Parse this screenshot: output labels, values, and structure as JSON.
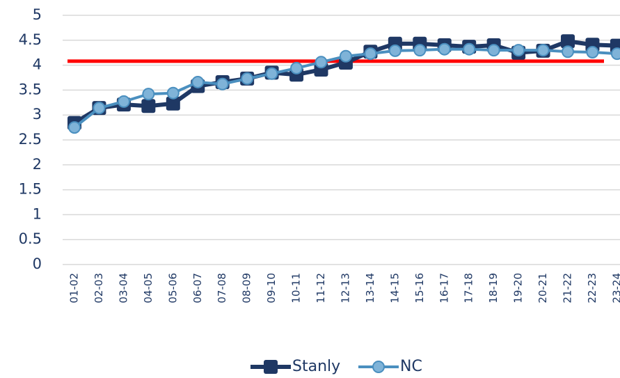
{
  "chart_data": {
    "type": "line",
    "categories": [
      "01-02",
      "02-03",
      "03-04",
      "04-05",
      "05-06",
      "06-07",
      "07-08",
      "08-09",
      "09-10",
      "10-11",
      "11-12",
      "12-13",
      "13-14",
      "14-15",
      "15-16",
      "16-17",
      "17-18",
      "18-19",
      "19-20",
      "20-21",
      "21-22",
      "22-23",
      "23-24"
    ],
    "series": [
      {
        "name": "Stanly",
        "color": "#1f3864",
        "marker": "square",
        "values": [
          2.84,
          3.14,
          3.21,
          3.18,
          3.23,
          3.58,
          3.66,
          3.73,
          3.85,
          3.81,
          3.91,
          4.05,
          4.27,
          4.43,
          4.43,
          4.4,
          4.37,
          4.4,
          4.25,
          4.29,
          4.48,
          4.41,
          4.39
        ]
      },
      {
        "name": "NC",
        "color": "#4a8fbf",
        "marker": "circle",
        "values": [
          2.75,
          3.14,
          3.27,
          3.42,
          3.44,
          3.66,
          3.62,
          3.73,
          3.83,
          3.94,
          4.06,
          4.18,
          4.23,
          4.29,
          4.3,
          4.32,
          4.32,
          4.3,
          4.3,
          4.3,
          4.27,
          4.26,
          4.23
        ]
      }
    ],
    "reference_line": {
      "value": 4.08,
      "color": "#ff0000"
    },
    "ylim": [
      0,
      5
    ],
    "yticks": [
      0,
      0.5,
      1,
      1.5,
      2,
      2.5,
      3,
      3.5,
      4,
      4.5,
      5
    ],
    "grid": true,
    "legend": "bottom"
  }
}
